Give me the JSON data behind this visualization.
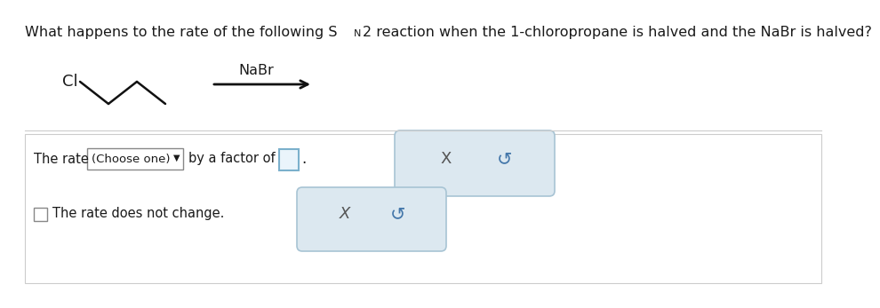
{
  "title_part1": "What happens to the rate of the following S",
  "title_sub": "N",
  "title_part2": "2 reaction when the 1-chloropropane is halved and the NaBr is halved?",
  "cl_label": "Cl",
  "nabr_label": "NaBr",
  "choose_one_text": "(Choose one)",
  "dropdown_arrow": "▼",
  "rate_prefix": "The rate",
  "by_factor_text": "by a factor of",
  "checkbox_text": "The rate does not change.",
  "period_text": ".",
  "x_symbol": "X",
  "undo_symbol": "↺",
  "bg_color": "#ffffff",
  "text_color": "#1a1a1a",
  "bond_color": "#111111",
  "box_bg_color": "#dce8f0",
  "box_border_color": "#a8c4d4",
  "btn_border_color": "#888888",
  "inp_border_color": "#7bb0cc",
  "inp_bg_color": "#eaf4fb",
  "sep_color": "#cccccc",
  "x_color": "#555555",
  "undo_color": "#4477aa",
  "title_fontsize": 11.5,
  "body_fontsize": 10.5,
  "small_fontsize": 9.5,
  "symbol_fontsize": 13
}
